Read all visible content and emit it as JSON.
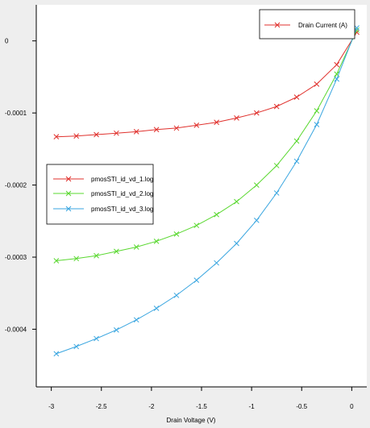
{
  "chart_data": {
    "type": "line",
    "xlabel": "Drain Voltage (V)",
    "ylabel": "",
    "xlim": [
      -3.15,
      0.15
    ],
    "ylim": [
      -0.00048,
      5e-05
    ],
    "x_ticks": [
      -3,
      -2.5,
      -2,
      -1.5,
      -1,
      -0.5,
      0
    ],
    "x_tick_labels": [
      "-3",
      "-2.5",
      "-2",
      "-1.5",
      "-1",
      "-0.5",
      "0"
    ],
    "y_ticks": [
      0,
      -0.0001,
      -0.0002,
      -0.0003,
      -0.0004
    ],
    "y_tick_labels": [
      "0",
      "-0.0001",
      "-0.0002",
      "-0.0003",
      "-0.0004"
    ],
    "grid": false,
    "legend_top_right": "Drain Current (A)",
    "legend_left": [
      "pmosSTI_id_vd_1.log",
      "pmosSTI_id_vd_2.log",
      "pmosSTI_id_vd_3.log"
    ],
    "x": [
      -2.95,
      -2.75,
      -2.55,
      -2.35,
      -2.15,
      -1.95,
      -1.75,
      -1.55,
      -1.35,
      -1.15,
      -0.95,
      -0.75,
      -0.55,
      -0.35,
      -0.15,
      0.05
    ],
    "series": [
      {
        "name": "pmosSTI_id_vd_1.log",
        "color": "#e0312d",
        "values": [
          -0.000133,
          -0.000132,
          -0.00013,
          -0.000128,
          -0.000126,
          -0.000123,
          -0.000121,
          -0.000117,
          -0.000113,
          -0.000107,
          -0.0001,
          -9.1e-05,
          -7.8e-05,
          -6e-05,
          -3.3e-05,
          1.2e-05
        ]
      },
      {
        "name": "pmosSTI_id_vd_2.log",
        "color": "#5ad830",
        "values": [
          -0.000305,
          -0.000302,
          -0.000298,
          -0.000292,
          -0.000286,
          -0.000278,
          -0.000268,
          -0.000256,
          -0.000241,
          -0.000223,
          -0.0002,
          -0.000173,
          -0.000139,
          -9.7e-05,
          -4.6e-05,
          1.5e-05
        ]
      },
      {
        "name": "pmosSTI_id_vd_3.log",
        "color": "#3aa6e0",
        "values": [
          -0.000434,
          -0.000424,
          -0.000413,
          -0.000401,
          -0.000387,
          -0.000371,
          -0.000353,
          -0.000332,
          -0.000308,
          -0.000281,
          -0.000249,
          -0.000211,
          -0.000167,
          -0.000116,
          -5.3e-05,
          1.8e-05
        ]
      }
    ]
  }
}
